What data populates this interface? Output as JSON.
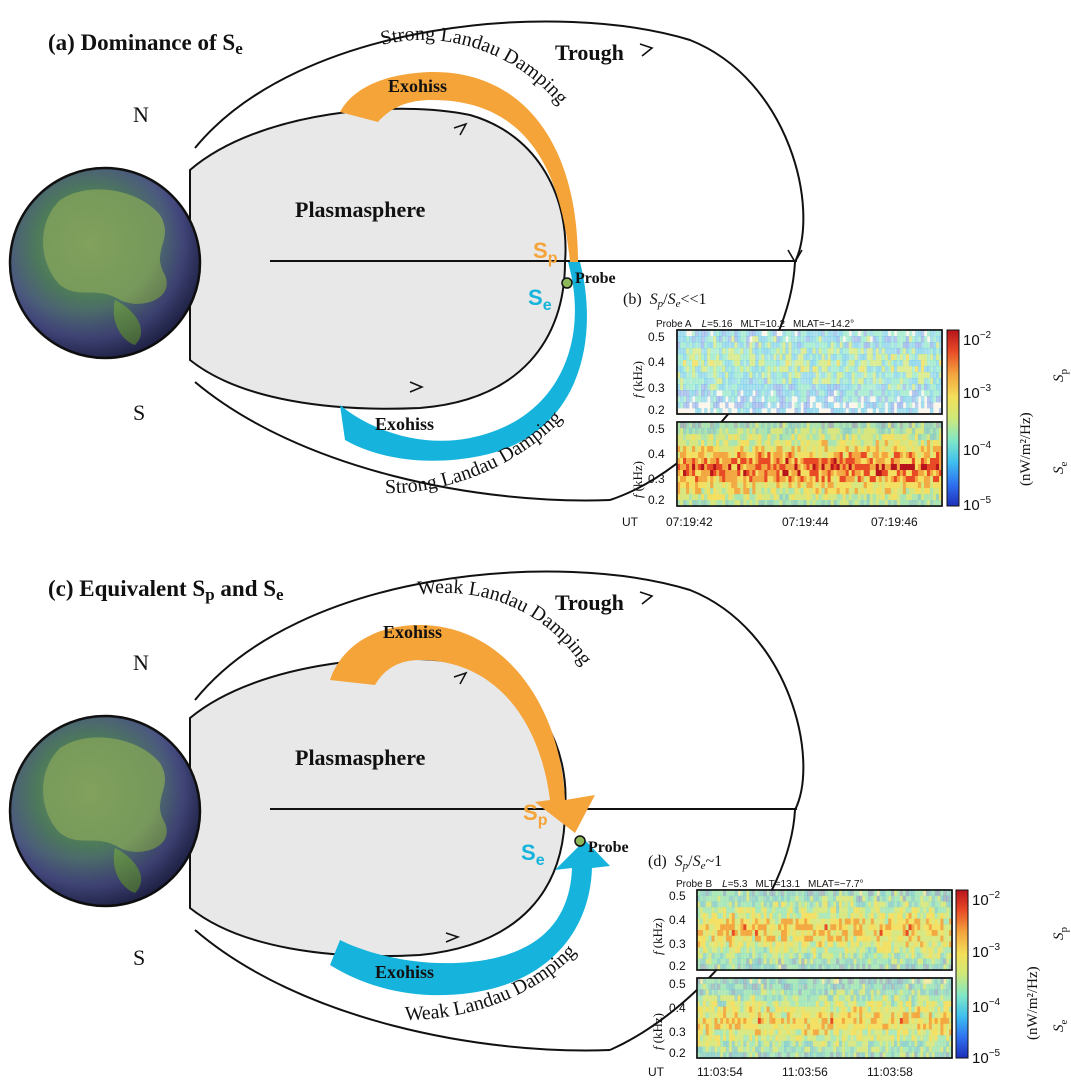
{
  "colors": {
    "sp_orange": "#f5a43a",
    "se_blue": "#16b4dc",
    "plasmasphere_fill": "#e8e8e8",
    "probe_dot": "#8db85a"
  },
  "panel_a": {
    "title": "(a) Dominance of S",
    "title_sub": "e",
    "trough": "Trough",
    "plasmasphere": "Plasmasphere",
    "north": "N",
    "south": "S",
    "exohiss_top": "Exohiss",
    "exohiss_bottom": "Exohiss",
    "damping_top": "Strong Landau Damping",
    "damping_bottom": "Strong Landau Damping",
    "sp_main": "S",
    "sp_sub": "p",
    "se_main": "S",
    "se_sub": "e",
    "probe": "Probe"
  },
  "panel_b": {
    "title_prefix": "(b)",
    "title_ratio": "S",
    "sub_p": "p",
    "sub_e": "e",
    "title_relation": "<<1",
    "probe_name": "Probe A",
    "L_label": "L",
    "L_value": "=5.16",
    "mlt": "MLT=10.2",
    "mlat": "MLAT=−14.2°",
    "yticks": [
      "0.5",
      "0.4",
      "0.3",
      "0.2"
    ],
    "ylabel_f": "f",
    "ylabel_unit": "(kHz)",
    "ut_label": "UT",
    "xticks": [
      "07:19:42",
      "07:19:44",
      "07:19:46"
    ],
    "cbar_ticks": [
      "10",
      "10",
      "10",
      "10"
    ],
    "cbar_exps": [
      "−2",
      "−3",
      "−4",
      "−5"
    ],
    "cbar_label": "(nW/m²/Hz)",
    "side_top": "S",
    "side_top_sub": "p",
    "side_bottom": "S",
    "side_bottom_sub": "e",
    "sp_level": 0.38,
    "se_level": 0.8
  },
  "panel_c": {
    "title": "(c) Equivalent S",
    "title_sub1": "p",
    "title_and": " and S",
    "title_sub2": "e",
    "trough": "Trough",
    "plasmasphere": "Plasmasphere",
    "north": "N",
    "south": "S",
    "exohiss_top": "Exohiss",
    "exohiss_bottom": "Exohiss",
    "damping_top": "Weak Landau Damping",
    "damping_bottom": "Weak Landau Damping",
    "sp_main": "S",
    "sp_sub": "p",
    "se_main": "S",
    "se_sub": "e",
    "probe": "Probe"
  },
  "panel_d": {
    "title_prefix": "(d)",
    "title_ratio": "S",
    "sub_p": "p",
    "sub_e": "e",
    "title_relation": "~1",
    "probe_name": "Probe B",
    "L_label": "L",
    "L_value": "=5.3",
    "mlt": "MLT=13.1",
    "mlat": "MLAT=−7.7°",
    "yticks": [
      "0.5",
      "0.4",
      "0.3",
      "0.2"
    ],
    "ylabel_f": "f",
    "ylabel_unit": "(kHz)",
    "ut_label": "UT",
    "xticks": [
      "11:03:54",
      "11:03:56",
      "11:03:58"
    ],
    "cbar_ticks": [
      "10",
      "10",
      "10",
      "10"
    ],
    "cbar_exps": [
      "−2",
      "−3",
      "−4",
      "−5"
    ],
    "cbar_label": "(nW/m²/Hz)",
    "side_top": "S",
    "side_top_sub": "p",
    "side_bottom": "S",
    "side_bottom_sub": "e",
    "sp_level": 0.62,
    "se_level": 0.6
  }
}
